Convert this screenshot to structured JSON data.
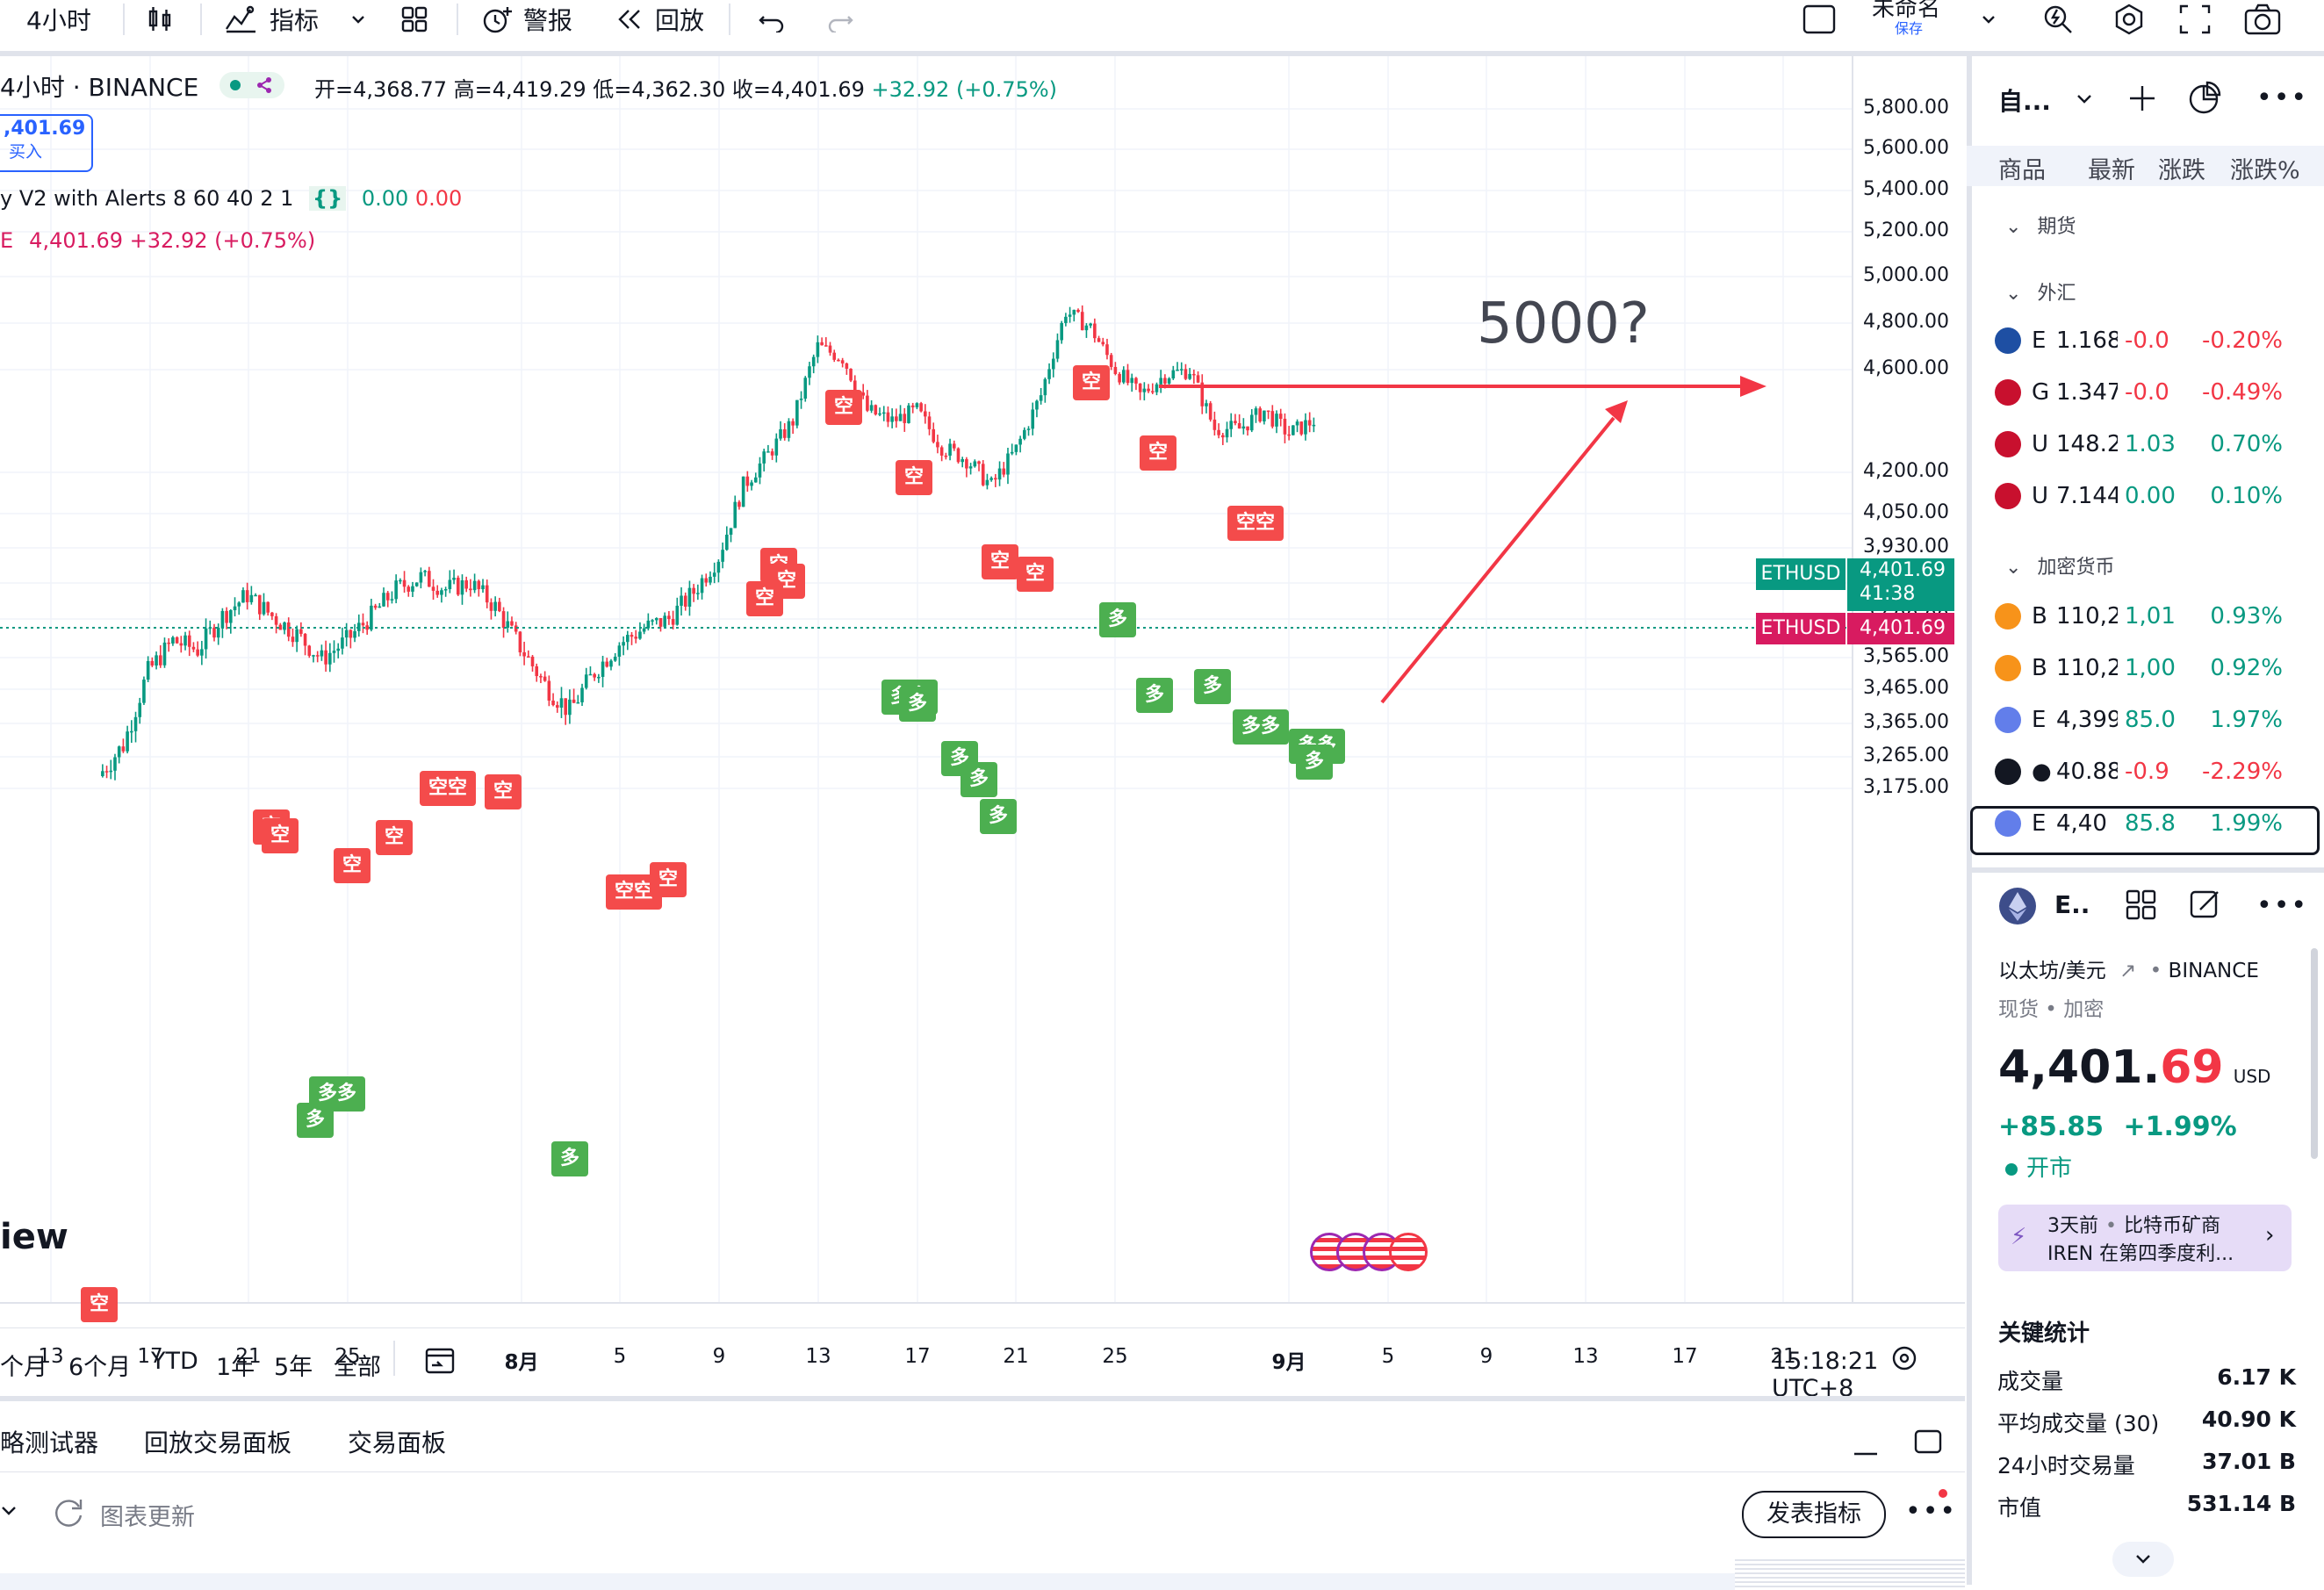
{
  "toolbar": {
    "interval": "4小时",
    "indicators_label": "指标",
    "alert_label": "警报",
    "replay_label": "回放",
    "layout_name": "未命名",
    "layout_sub": "保存"
  },
  "legend": {
    "symbol_line": "4小时 · BINANCE",
    "open": "开=4,368.77",
    "high": "高=4,419.29",
    "low": "低=4,362.30",
    "close": "收=4,401.69",
    "change": "+32.92 (+0.75%)",
    "buy_price": ",401.69",
    "buy_label": "买入",
    "indicator_name": "y V2 with Alerts 8 60 40 2 1",
    "indicator_v1": "0.00",
    "indicator_v2": "0.00",
    "compare_line": "4,401.69 +32.92 (+0.75%)"
  },
  "price_axis": [
    "5,800.00",
    "5,600.00",
    "5,400.00",
    "5,200.00",
    "5,000.00",
    "4,800.00",
    "4,600.00",
    "4,200.00",
    "4,050.00",
    "3,930.00",
    "3,810.00",
    "3,690.00",
    "3,565.00",
    "3,465.00",
    "3,365.00",
    "3,265.00",
    "3,175.00"
  ],
  "price_badges": [
    {
      "symbol": "ETHUSD",
      "price": "4,401.69",
      "countdown": "41:38",
      "color": "#089981"
    },
    {
      "symbol": "ETHUSD",
      "price": "4,401.69",
      "color": "#d81b60"
    }
  ],
  "time_axis": [
    "13",
    "17",
    "21",
    "25",
    "8月",
    "5",
    "9",
    "13",
    "17",
    "21",
    "25",
    "9月",
    "5",
    "9",
    "13",
    "17",
    "21"
  ],
  "annotation": "5000?",
  "watermark": "iew",
  "signal_labels": {
    "short": "空",
    "long": "多",
    "short2": "空空",
    "long2": "多多"
  },
  "range_bar": [
    "个月",
    "6个月",
    "YTD",
    "1年",
    "5年",
    "全部"
  ],
  "clock": "15:18:21 UTC+8",
  "bottom_tabs": [
    "略测试器",
    "回放交易面板",
    "交易面板"
  ],
  "bottom_status": {
    "refresh": "图表更新",
    "publish": "发表指标"
  },
  "watchlist": {
    "title": "自...",
    "columns": [
      "商品",
      "最新",
      "涨跌",
      "涨跌%"
    ],
    "sections": [
      "期货",
      "外汇",
      "加密货币"
    ],
    "forex": [
      {
        "sym": "E",
        "last": "1.168",
        "chg": "-0.0",
        "pct": "-0.20%",
        "dir": "down"
      },
      {
        "sym": "G",
        "last": "1.347",
        "chg": "-0.0",
        "pct": "-0.49%",
        "dir": "down"
      },
      {
        "sym": "U",
        "last": "148.2",
        "chg": "1.03",
        "pct": "0.70%",
        "dir": "up"
      },
      {
        "sym": "U",
        "last": "7.144",
        "chg": "0.00",
        "pct": "0.10%",
        "dir": "up"
      }
    ],
    "crypto": [
      {
        "sym": "B",
        "last": "110,2",
        "chg": "1,01",
        "pct": "0.93%",
        "dir": "up"
      },
      {
        "sym": "B",
        "last": "110,2",
        "chg": "1,00",
        "pct": "0.92%",
        "dir": "up"
      },
      {
        "sym": "E",
        "last": "4,399",
        "chg": "85.0",
        "pct": "1.97%",
        "dir": "up"
      },
      {
        "sym": "●",
        "last": "40.88",
        "chg": "-0.9",
        "pct": "-2.29%",
        "dir": "down"
      },
      {
        "sym": "E",
        "last": "4,40",
        "chg": "85.8",
        "pct": "1.99%",
        "dir": "up"
      }
    ]
  },
  "details": {
    "short": "E..",
    "name": "以太坊/美元",
    "exchange": "BINANCE",
    "type": "现货 • 加密",
    "price_main": "4,401.",
    "price_dec": "69",
    "currency": "USD",
    "change": "+85.85",
    "change_pct": "+1.99%",
    "market_status": "开市",
    "news_time": "3天前",
    "news_src": "比特币矿商",
    "news_text": "IREN 在第四季度利...",
    "stats_title": "关键统计",
    "stats": [
      {
        "label": "成交量",
        "value": "6.17 K"
      },
      {
        "label": "平均成交量 (30)",
        "value": "40.90 K"
      },
      {
        "label": "24小时交易量",
        "value": "37.01 B"
      },
      {
        "label": "市值",
        "value": "531.14 B"
      }
    ]
  },
  "colors": {
    "up": "#089981",
    "down": "#f23645",
    "long_tag": "#4caf50",
    "short_tag": "#f44b4b",
    "accent": "#2962ff"
  },
  "chart_data": {
    "type": "candlestick",
    "symbol": "ETHUSD",
    "interval": "4H",
    "close_path": [
      [
        "07-15",
        3210
      ],
      [
        "07-16",
        3300
      ],
      [
        "07-17",
        3520
      ],
      [
        "07-18",
        3620
      ],
      [
        "07-19",
        3590
      ],
      [
        "07-20",
        3700
      ],
      [
        "07-21",
        3770
      ],
      [
        "07-22",
        3700
      ],
      [
        "07-23",
        3640
      ],
      [
        "07-24",
        3560
      ],
      [
        "07-25",
        3620
      ],
      [
        "07-26",
        3700
      ],
      [
        "07-27",
        3790
      ],
      [
        "07-28",
        3830
      ],
      [
        "07-29",
        3790
      ],
      [
        "07-30",
        3810
      ],
      [
        "07-31",
        3730
      ],
      [
        "08-01",
        3600
      ],
      [
        "08-02",
        3480
      ],
      [
        "08-03",
        3400
      ],
      [
        "08-04",
        3520
      ],
      [
        "08-05",
        3610
      ],
      [
        "08-06",
        3660
      ],
      [
        "08-07",
        3690
      ],
      [
        "08-08",
        3780
      ],
      [
        "08-09",
        3900
      ],
      [
        "08-10",
        4150
      ],
      [
        "08-11",
        4270
      ],
      [
        "08-12",
        4400
      ],
      [
        "08-13",
        4700
      ],
      [
        "08-14",
        4650
      ],
      [
        "08-15",
        4440
      ],
      [
        "08-16",
        4400
      ],
      [
        "08-17",
        4440
      ],
      [
        "08-18",
        4300
      ],
      [
        "08-19",
        4250
      ],
      [
        "08-20",
        4150
      ],
      [
        "08-21",
        4290
      ],
      [
        "08-22",
        4500
      ],
      [
        "08-23",
        4850
      ],
      [
        "08-24",
        4780
      ],
      [
        "08-25",
        4600
      ],
      [
        "08-26",
        4500
      ],
      [
        "08-27",
        4580
      ],
      [
        "08-28",
        4600
      ],
      [
        "08-29",
        4370
      ],
      [
        "08-30",
        4370
      ],
      [
        "08-31",
        4440
      ],
      [
        "09-01",
        4350
      ],
      [
        "09-02",
        4401.69
      ]
    ]
  }
}
